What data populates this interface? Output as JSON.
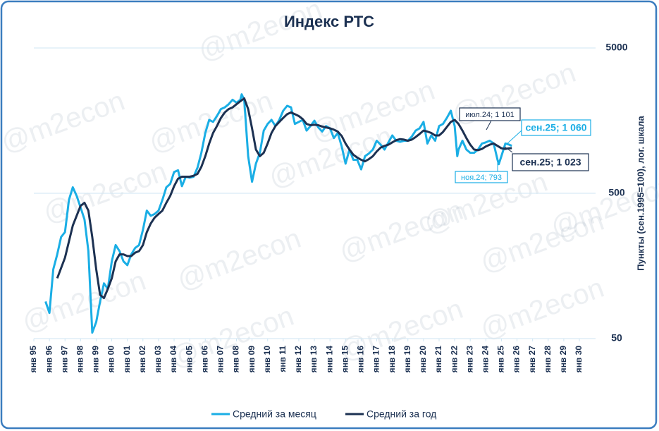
{
  "chart_data": {
    "type": "line",
    "title": "Индекс РТС",
    "y_label": "Пункты (сен.1995=100), лог. шкала",
    "watermark": "@m2econ",
    "log_scale": true,
    "grid": true,
    "legend": "bottom",
    "xlim": [
      "1995-01",
      "2030-01"
    ],
    "ylim": [
      50,
      5000
    ],
    "yticks": [
      50,
      500,
      5000
    ],
    "xticks": [
      {
        "value": "1995-01",
        "label": "янв 95"
      },
      {
        "value": "1996-01",
        "label": "янв 96"
      },
      {
        "value": "1997-01",
        "label": "янв 97"
      },
      {
        "value": "1998-01",
        "label": "янв 98"
      },
      {
        "value": "1999-01",
        "label": "янв 99"
      },
      {
        "value": "2000-01",
        "label": "янв 00"
      },
      {
        "value": "2001-01",
        "label": "янв 01"
      },
      {
        "value": "2002-01",
        "label": "янв 02"
      },
      {
        "value": "2003-01",
        "label": "янв 03"
      },
      {
        "value": "2004-01",
        "label": "янв 04"
      },
      {
        "value": "2005-01",
        "label": "янв 05"
      },
      {
        "value": "2006-01",
        "label": "янв 06"
      },
      {
        "value": "2007-01",
        "label": "янв 07"
      },
      {
        "value": "2008-01",
        "label": "янв 08"
      },
      {
        "value": "2009-01",
        "label": "янв 09"
      },
      {
        "value": "2010-01",
        "label": "янв 10"
      },
      {
        "value": "2011-01",
        "label": "янв 11"
      },
      {
        "value": "2012-01",
        "label": "янв 12"
      },
      {
        "value": "2013-01",
        "label": "янв 13"
      },
      {
        "value": "2014-01",
        "label": "янв 14"
      },
      {
        "value": "2015-01",
        "label": "янв 15"
      },
      {
        "value": "2016-01",
        "label": "янв 16"
      },
      {
        "value": "2017-01",
        "label": "янв 17"
      },
      {
        "value": "2018-01",
        "label": "янв 18"
      },
      {
        "value": "2019-01",
        "label": "янв 19"
      },
      {
        "value": "2020-01",
        "label": "янв 20"
      },
      {
        "value": "2021-01",
        "label": "янв 21"
      },
      {
        "value": "2022-01",
        "label": "янв 22"
      },
      {
        "value": "2023-01",
        "label": "янв 23"
      },
      {
        "value": "2024-01",
        "label": "янв 24"
      },
      {
        "value": "2025-01",
        "label": "янв 25"
      },
      {
        "value": "2026-01",
        "label": "янв 26"
      },
      {
        "value": "2027-01",
        "label": "янв 27"
      },
      {
        "value": "2028-01",
        "label": "янв 28"
      },
      {
        "value": "2029-01",
        "label": "янв 29"
      },
      {
        "value": "2030-01",
        "label": "янв 30"
      }
    ],
    "series": [
      {
        "name": "Средний за месяц",
        "color": "#1aaee5",
        "x": [
          "1995-10",
          "1996-01",
          "1996-04",
          "1996-07",
          "1996-10",
          "1997-01",
          "1997-04",
          "1997-07",
          "1997-10",
          "1998-01",
          "1998-04",
          "1998-07",
          "1998-10",
          "1999-01",
          "1999-04",
          "1999-07",
          "1999-10",
          "2000-01",
          "2000-04",
          "2000-07",
          "2000-10",
          "2001-01",
          "2001-04",
          "2001-07",
          "2001-10",
          "2002-01",
          "2002-04",
          "2002-07",
          "2002-10",
          "2003-01",
          "2003-04",
          "2003-07",
          "2003-10",
          "2004-01",
          "2004-04",
          "2004-07",
          "2004-10",
          "2005-01",
          "2005-04",
          "2005-07",
          "2005-10",
          "2006-01",
          "2006-04",
          "2006-07",
          "2006-10",
          "2007-01",
          "2007-04",
          "2007-07",
          "2007-10",
          "2008-01",
          "2008-04",
          "2008-05",
          "2008-07",
          "2008-10",
          "2009-01",
          "2009-04",
          "2009-07",
          "2009-10",
          "2010-01",
          "2010-04",
          "2010-07",
          "2010-10",
          "2011-01",
          "2011-04",
          "2011-07",
          "2011-10",
          "2012-01",
          "2012-04",
          "2012-07",
          "2012-10",
          "2013-01",
          "2013-04",
          "2013-07",
          "2013-10",
          "2014-01",
          "2014-04",
          "2014-07",
          "2014-10",
          "2015-01",
          "2015-04",
          "2015-07",
          "2015-10",
          "2016-01",
          "2016-04",
          "2016-07",
          "2016-10",
          "2017-01",
          "2017-04",
          "2017-07",
          "2017-10",
          "2018-01",
          "2018-04",
          "2018-07",
          "2018-10",
          "2019-01",
          "2019-04",
          "2019-07",
          "2019-10",
          "2020-01",
          "2020-04",
          "2020-07",
          "2020-10",
          "2021-01",
          "2021-04",
          "2021-07",
          "2021-10",
          "2022-01",
          "2022-03",
          "2022-04",
          "2022-07",
          "2022-10",
          "2023-01",
          "2023-04",
          "2023-07",
          "2023-10",
          "2024-01",
          "2024-04",
          "2024-07",
          "2024-10",
          "2024-11",
          "2025-01",
          "2025-04",
          "2025-07",
          "2025-09"
        ],
        "values": [
          90,
          75,
          150,
          190,
          250,
          270,
          450,
          550,
          480,
          400,
          330,
          200,
          55,
          65,
          90,
          120,
          110,
          170,
          220,
          200,
          170,
          160,
          190,
          210,
          220,
          280,
          380,
          350,
          360,
          380,
          450,
          550,
          580,
          700,
          720,
          560,
          650,
          640,
          650,
          750,
          950,
          1300,
          1600,
          1550,
          1700,
          1900,
          1950,
          2050,
          2200,
          2100,
          2200,
          2400,
          2200,
          900,
          600,
          800,
          950,
          1350,
          1500,
          1600,
          1450,
          1600,
          1850,
          2000,
          1950,
          1500,
          1550,
          1600,
          1350,
          1450,
          1580,
          1420,
          1330,
          1450,
          1400,
          1200,
          1300,
          1050,
          800,
          1000,
          850,
          850,
          730,
          900,
          940,
          1000,
          1150,
          1080,
          1000,
          1120,
          1250,
          1150,
          1130,
          1150,
          1150,
          1230,
          1350,
          1400,
          1550,
          1100,
          1250,
          1150,
          1450,
          1500,
          1650,
          1850,
          1450,
          900,
          1000,
          1150,
          1000,
          950,
          950,
          1000,
          1100,
          1120,
          1150,
          1101,
          850,
          793,
          900,
          1100,
          1080,
          1060
        ]
      },
      {
        "name": "Средний за год",
        "color": "#1c3152",
        "x": [
          "1996-07",
          "1997-01",
          "1997-07",
          "1998-01",
          "1998-04",
          "1998-07",
          "1998-10",
          "1999-01",
          "1999-04",
          "1999-07",
          "1999-10",
          "2000-01",
          "2000-04",
          "2000-07",
          "2000-10",
          "2001-01",
          "2001-04",
          "2001-07",
          "2001-10",
          "2002-01",
          "2002-04",
          "2002-07",
          "2002-10",
          "2003-01",
          "2003-04",
          "2003-07",
          "2003-10",
          "2004-01",
          "2004-04",
          "2004-07",
          "2004-10",
          "2005-01",
          "2005-04",
          "2005-07",
          "2005-10",
          "2006-01",
          "2006-04",
          "2006-07",
          "2006-10",
          "2007-01",
          "2007-04",
          "2007-07",
          "2007-10",
          "2008-01",
          "2008-04",
          "2008-07",
          "2008-10",
          "2009-01",
          "2009-04",
          "2009-07",
          "2009-10",
          "2010-01",
          "2010-04",
          "2010-07",
          "2010-10",
          "2011-01",
          "2011-04",
          "2011-07",
          "2011-10",
          "2012-01",
          "2012-04",
          "2012-07",
          "2012-10",
          "2013-01",
          "2013-04",
          "2013-07",
          "2013-10",
          "2014-01",
          "2014-04",
          "2014-07",
          "2014-10",
          "2015-01",
          "2015-04",
          "2015-07",
          "2015-10",
          "2016-01",
          "2016-04",
          "2016-07",
          "2016-10",
          "2017-01",
          "2017-04",
          "2017-07",
          "2017-10",
          "2018-01",
          "2018-04",
          "2018-07",
          "2018-10",
          "2019-01",
          "2019-04",
          "2019-07",
          "2019-10",
          "2020-01",
          "2020-04",
          "2020-07",
          "2020-10",
          "2021-01",
          "2021-04",
          "2021-07",
          "2021-10",
          "2022-01",
          "2022-04",
          "2022-07",
          "2022-10",
          "2023-01",
          "2023-04",
          "2023-07",
          "2023-10",
          "2024-01",
          "2024-04",
          "2024-07",
          "2024-10",
          "2025-01",
          "2025-04",
          "2025-07",
          "2025-09"
        ],
        "values": [
          130,
          180,
          300,
          410,
          430,
          380,
          250,
          150,
          100,
          95,
          110,
          130,
          170,
          190,
          190,
          185,
          185,
          195,
          200,
          220,
          270,
          310,
          340,
          360,
          380,
          430,
          480,
          560,
          630,
          650,
          650,
          650,
          660,
          680,
          760,
          900,
          1100,
          1300,
          1450,
          1650,
          1800,
          1900,
          1950,
          2050,
          2150,
          2250,
          1900,
          1400,
          1000,
          900,
          950,
          1100,
          1300,
          1450,
          1550,
          1650,
          1750,
          1800,
          1750,
          1700,
          1620,
          1500,
          1470,
          1480,
          1470,
          1440,
          1420,
          1400,
          1370,
          1330,
          1240,
          1100,
          1000,
          920,
          880,
          850,
          830,
          860,
          900,
          970,
          1030,
          1060,
          1080,
          1120,
          1160,
          1180,
          1170,
          1150,
          1170,
          1220,
          1280,
          1350,
          1330,
          1300,
          1250,
          1250,
          1320,
          1430,
          1550,
          1600,
          1500,
          1350,
          1200,
          1080,
          1000,
          990,
          1010,
          1050,
          1080,
          1101,
          1060,
          1020,
          1010,
          1020,
          1023
        ]
      }
    ],
    "annotations": [
      "июл.24; 1 101",
      "сен.25; 1 060",
      "сен.25; 1 023",
      "ноя.24; 793"
    ]
  }
}
